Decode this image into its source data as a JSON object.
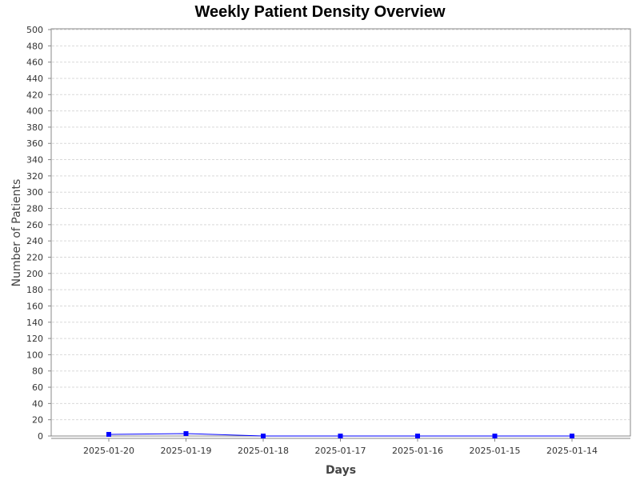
{
  "colors": {
    "series": "#0000ff",
    "grid": "#d9d9d9",
    "axis": "#888888",
    "background": "#ffffff"
  },
  "chart_data": {
    "type": "line",
    "title": "Weekly Patient Density Overview",
    "xlabel": "Days",
    "ylabel": "Number of Patients",
    "categories": [
      "2025-01-20",
      "2025-01-19",
      "2025-01-18",
      "2025-01-17",
      "2025-01-16",
      "2025-01-15",
      "2025-01-14"
    ],
    "series": [
      {
        "values": [
          2,
          3,
          0,
          0,
          0,
          0,
          0
        ],
        "marker": "square"
      }
    ],
    "ylim": [
      0,
      500
    ],
    "ytick_step": 20,
    "grid": true,
    "legend": "none"
  }
}
